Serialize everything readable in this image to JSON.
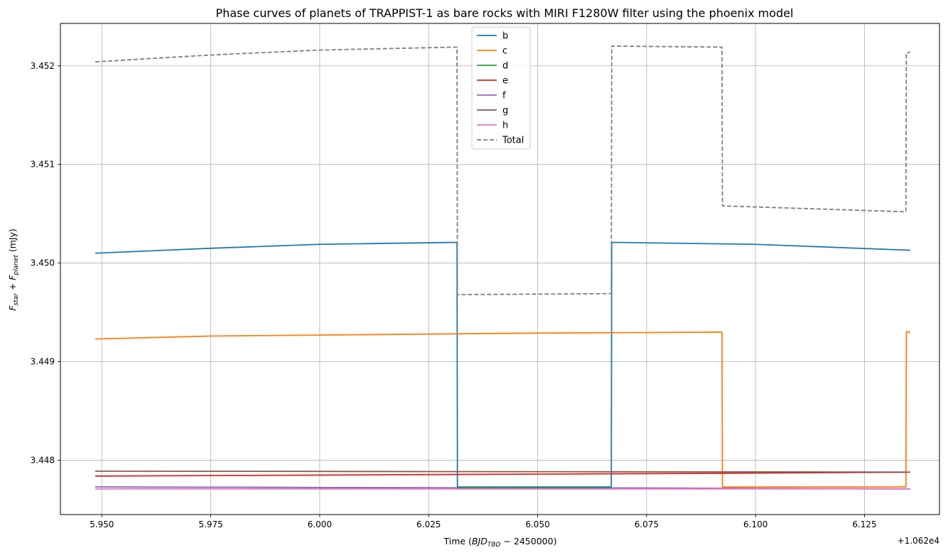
{
  "chart_data": {
    "type": "line",
    "title": "Phase curves of planets of TRAPPIST-1 as bare rocks with MIRI F1280W filter using the phoenix model",
    "xlabel": {
      "main": "Time (",
      "italic": "BJD",
      "sub": "TBD",
      "tail": " − 2450000)"
    },
    "ylabel": {
      "f1": "F",
      "s1": "star",
      "plus": " + ",
      "f2": "F",
      "s2": "planet",
      "unit": " (mJy)"
    },
    "x_offset_label": "+1.062e4",
    "xlim": [
      5.9405,
      6.1422
    ],
    "ylim": [
      3.44745,
      3.45243
    ],
    "x_ticks": [
      5.95,
      5.975,
      6.0,
      6.025,
      6.05,
      6.075,
      6.1,
      6.125
    ],
    "x_tick_labels": [
      "5.950",
      "5.975",
      "6.000",
      "6.025",
      "6.050",
      "6.075",
      "6.100",
      "6.125"
    ],
    "y_ticks": [
      3.448,
      3.449,
      3.45,
      3.451,
      3.452
    ],
    "y_tick_labels": [
      "3.448",
      "3.449",
      "3.450",
      "3.451",
      "3.452"
    ],
    "grid": true,
    "legend_position": "upper center",
    "series": [
      {
        "name": "b",
        "color": "#1f77b4",
        "dashed": false,
        "points": [
          [
            5.9485,
            3.4501
          ],
          [
            5.975,
            3.45015
          ],
          [
            6.0,
            3.45019
          ],
          [
            6.0315,
            3.45021
          ],
          [
            6.0316,
            3.44773
          ],
          [
            6.0669,
            3.44773
          ],
          [
            6.067,
            3.45021
          ],
          [
            6.1,
            3.45019
          ],
          [
            6.1355,
            3.45013
          ]
        ]
      },
      {
        "name": "c",
        "color": "#ff7f0e",
        "dashed": false,
        "points": [
          [
            5.9485,
            3.44923
          ],
          [
            5.975,
            3.44926
          ],
          [
            6.0,
            3.44927
          ],
          [
            6.05,
            3.44929
          ],
          [
            6.0923,
            3.4493
          ],
          [
            6.0924,
            3.44773
          ],
          [
            6.1345,
            3.44773
          ],
          [
            6.1346,
            3.4493
          ],
          [
            6.1355,
            3.4493
          ]
        ]
      },
      {
        "name": "d",
        "color": "#2ca02c",
        "dashed": false,
        "points": [
          [
            5.9485,
            3.44773
          ],
          [
            6.1355,
            3.44771
          ]
        ]
      },
      {
        "name": "e",
        "color": "#d62728",
        "dashed": false,
        "points": [
          [
            5.9485,
            3.44784
          ],
          [
            6.0,
            3.44785
          ],
          [
            6.05,
            3.44786
          ],
          [
            6.1,
            3.44787
          ],
          [
            6.1355,
            3.44788
          ]
        ]
      },
      {
        "name": "f",
        "color": "#9467bd",
        "dashed": false,
        "points": [
          [
            5.9485,
            3.44773
          ],
          [
            6.0316,
            3.44772
          ],
          [
            6.0316,
            3.44771
          ],
          [
            6.0669,
            3.44771
          ],
          [
            6.067,
            3.44772
          ],
          [
            6.1355,
            3.44771
          ]
        ]
      },
      {
        "name": "g",
        "color": "#8c564b",
        "dashed": false,
        "points": [
          [
            5.9485,
            3.44789
          ],
          [
            6.1355,
            3.44788
          ]
        ]
      },
      {
        "name": "h",
        "color": "#e377c2",
        "dashed": false,
        "points": [
          [
            5.9485,
            3.44771
          ],
          [
            6.1355,
            3.44771
          ]
        ]
      },
      {
        "name": "Total",
        "color": "#7f7f7f",
        "dashed": true,
        "points": [
          [
            5.9485,
            3.45204
          ],
          [
            5.975,
            3.45211
          ],
          [
            6.0,
            3.45216
          ],
          [
            6.0315,
            3.45219
          ],
          [
            6.0316,
            3.44968
          ],
          [
            6.0669,
            3.44969
          ],
          [
            6.067,
            3.4522
          ],
          [
            6.0923,
            3.45219
          ],
          [
            6.0924,
            3.45058
          ],
          [
            6.1345,
            3.45052
          ],
          [
            6.1346,
            3.45213
          ],
          [
            6.1355,
            3.45214
          ]
        ]
      }
    ]
  }
}
